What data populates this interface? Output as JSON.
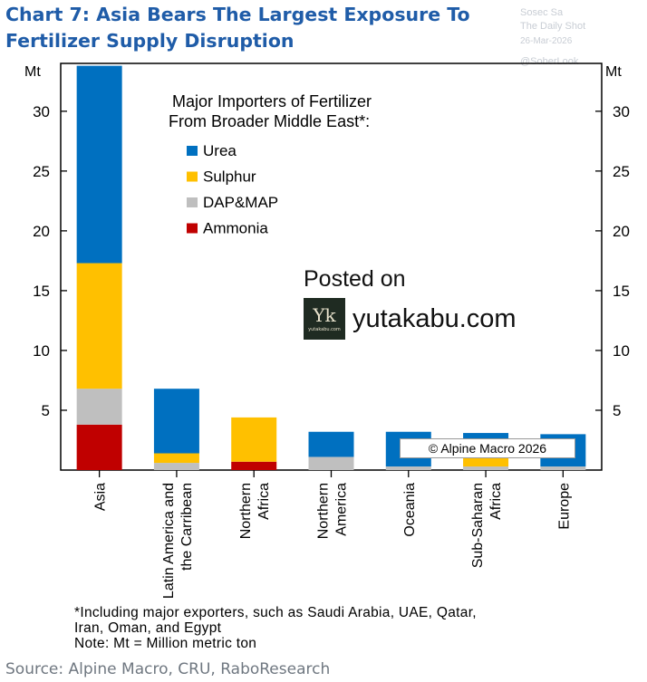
{
  "title_lines": [
    "Chart 7: Asia Bears The Largest Exposure To",
    "Fertilizer Supply Disruption"
  ],
  "watermark": {
    "line1": "Sosec Sa",
    "line2": "The Daily Shot",
    "line3": "26-Mar-2026",
    "line4": "@SoberLook"
  },
  "chart_data": {
    "type": "bar",
    "stacked": true,
    "unit_left": "Mt",
    "unit_right": "Mt",
    "ylim": [
      0,
      34
    ],
    "yticks": [
      5,
      10,
      15,
      20,
      25,
      30
    ],
    "categories": [
      [
        "Asia"
      ],
      [
        "Latin America and",
        "the Carribean"
      ],
      [
        "Northern",
        "Africa"
      ],
      [
        "Northern",
        "America"
      ],
      [
        "Oceania"
      ],
      [
        "Sub-Saharan",
        "Africa"
      ],
      [
        "Europe"
      ]
    ],
    "series": [
      {
        "name": "Ammonia",
        "color": "#c00000",
        "values": [
          3.8,
          0,
          0.7,
          0,
          0,
          0,
          0
        ]
      },
      {
        "name": "DAP&MAP",
        "color": "#bfbfbf",
        "values": [
          3.0,
          0.6,
          0,
          1.1,
          0.3,
          0.3,
          0.3
        ]
      },
      {
        "name": "Sulphur",
        "color": "#ffc000",
        "values": [
          10.5,
          0.8,
          3.7,
          0,
          0,
          0.9,
          0
        ]
      },
      {
        "name": "Urea",
        "color": "#0070c0",
        "values": [
          16.5,
          5.4,
          0,
          2.1,
          2.9,
          1.9,
          2.7
        ]
      }
    ],
    "legend_title": [
      "Major Importers of Fertilizer",
      "From Broader Middle East*:"
    ],
    "legend_order": [
      "Urea",
      "Sulphur",
      "DAP&MAP",
      "Ammonia"
    ],
    "legend_placement": "top-right",
    "grid": false
  },
  "posted": {
    "label": "Posted on",
    "site": "yutakabu.com",
    "logo_mark": "Yk",
    "logo_small": "yutakabu.com"
  },
  "copyright": "© Alpine Macro 2026",
  "footnotes": [
    "*Including major exporters, such as Saudi Arabia, UAE, Qatar,",
    "Iran, Oman, and Egypt",
    "Note: Mt = Million metric ton"
  ],
  "source": "Source: Alpine Macro, CRU, RaboResearch"
}
